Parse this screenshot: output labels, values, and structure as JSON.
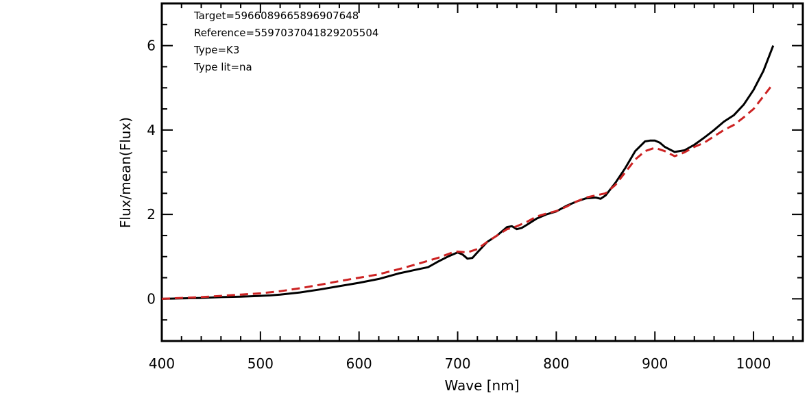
{
  "chart_data": {
    "type": "line",
    "title": "",
    "xlabel": "Wave [nm]",
    "ylabel": "Flux/mean(Flux)",
    "xlim": [
      400,
      1050
    ],
    "ylim": [
      -1,
      7
    ],
    "x_ticks": [
      "400",
      "500",
      "600",
      "700",
      "800",
      "900",
      "1000"
    ],
    "y_ticks": [
      "0",
      "2",
      "4",
      "6"
    ],
    "grid": false,
    "annotations": [
      "Target=5966089665896907648",
      "Reference=5597037041829205504",
      "Type=K3",
      "Type lit=na"
    ],
    "series": [
      {
        "color": "#000000",
        "style": "solid",
        "x": [
          400,
          420,
          440,
          460,
          480,
          500,
          510,
          520,
          540,
          560,
          580,
          600,
          620,
          640,
          650,
          660,
          670,
          680,
          690,
          700,
          705,
          710,
          715,
          720,
          730,
          740,
          750,
          755,
          760,
          765,
          770,
          780,
          790,
          800,
          810,
          820,
          830,
          840,
          845,
          850,
          860,
          870,
          880,
          890,
          895,
          900,
          905,
          910,
          920,
          930,
          940,
          950,
          960,
          970,
          980,
          990,
          1000,
          1010,
          1020
        ],
        "y": [
          0.0,
          0.01,
          0.02,
          0.04,
          0.05,
          0.07,
          0.08,
          0.1,
          0.15,
          0.22,
          0.3,
          0.38,
          0.47,
          0.6,
          0.65,
          0.7,
          0.75,
          0.88,
          1.0,
          1.1,
          1.05,
          0.95,
          0.97,
          1.1,
          1.35,
          1.5,
          1.7,
          1.72,
          1.65,
          1.68,
          1.75,
          1.9,
          2.0,
          2.07,
          2.2,
          2.3,
          2.38,
          2.4,
          2.37,
          2.45,
          2.75,
          3.1,
          3.5,
          3.73,
          3.75,
          3.75,
          3.7,
          3.6,
          3.48,
          3.52,
          3.65,
          3.82,
          4.0,
          4.2,
          4.35,
          4.6,
          4.95,
          5.4,
          6.0
        ]
      },
      {
        "color": "#cc2222",
        "style": "dashed",
        "x": [
          400,
          420,
          440,
          460,
          480,
          500,
          520,
          540,
          560,
          580,
          600,
          620,
          640,
          660,
          680,
          695,
          700,
          710,
          720,
          730,
          740,
          750,
          755,
          760,
          770,
          780,
          790,
          800,
          810,
          820,
          830,
          840,
          850,
          860,
          870,
          880,
          890,
          900,
          910,
          920,
          930,
          940,
          950,
          960,
          970,
          980,
          990,
          1000,
          1010,
          1020
        ],
        "y": [
          0.0,
          0.02,
          0.04,
          0.07,
          0.1,
          0.13,
          0.18,
          0.25,
          0.33,
          0.42,
          0.5,
          0.58,
          0.7,
          0.83,
          0.97,
          1.1,
          1.12,
          1.1,
          1.18,
          1.35,
          1.5,
          1.65,
          1.68,
          1.72,
          1.82,
          1.95,
          2.02,
          2.08,
          2.18,
          2.3,
          2.4,
          2.45,
          2.5,
          2.7,
          3.0,
          3.3,
          3.5,
          3.58,
          3.5,
          3.38,
          3.47,
          3.6,
          3.7,
          3.85,
          4.0,
          4.12,
          4.3,
          4.5,
          4.8,
          5.1
        ]
      }
    ]
  }
}
